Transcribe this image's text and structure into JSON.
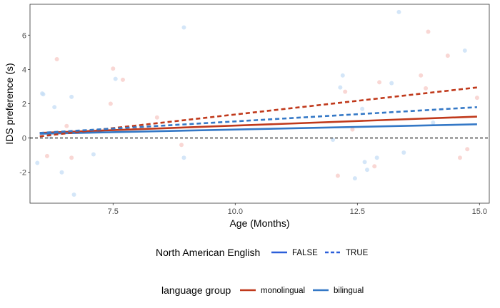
{
  "chart_data": {
    "type": "scatter",
    "xlabel": "Age (Months)",
    "ylabel": "IDS preference (s)",
    "xlim": [
      5.8,
      15.2
    ],
    "ylim": [
      -3.8,
      7.8
    ],
    "x_ticks": [
      7.5,
      10.0,
      12.5,
      15.0
    ],
    "x_tick_labels": [
      "7.5",
      "10.0",
      "12.5",
      "15.0"
    ],
    "y_ticks": [
      -2,
      0,
      2,
      4,
      6
    ],
    "y_tick_labels": [
      "-2",
      "0",
      "2",
      "4",
      "6"
    ],
    "reference_line": {
      "y": 0,
      "style": "dashed"
    },
    "grid": false,
    "colors": {
      "monolingual": "#c0391b",
      "bilingual": "#3478c6",
      "monolingual_point": "#f7c9c6",
      "bilingual_point": "#c6def5",
      "false_legend_line": "#2b5fd9",
      "true_legend_line": "#2b5fd9"
    },
    "points": [
      {
        "x": 5.95,
        "y": -1.45,
        "group": "bilingual"
      },
      {
        "x": 6.05,
        "y": 2.6,
        "group": "bilingual"
      },
      {
        "x": 6.07,
        "y": 2.55,
        "group": "bilingual"
      },
      {
        "x": 6.15,
        "y": -1.05,
        "group": "monolingual"
      },
      {
        "x": 6.2,
        "y": 0.05,
        "group": "bilingual"
      },
      {
        "x": 6.3,
        "y": 1.8,
        "group": "bilingual"
      },
      {
        "x": 6.35,
        "y": 4.6,
        "group": "monolingual"
      },
      {
        "x": 6.45,
        "y": -2.0,
        "group": "bilingual"
      },
      {
        "x": 6.55,
        "y": 0.7,
        "group": "monolingual"
      },
      {
        "x": 6.65,
        "y": 2.4,
        "group": "bilingual"
      },
      {
        "x": 6.65,
        "y": -1.15,
        "group": "monolingual"
      },
      {
        "x": 6.7,
        "y": -3.3,
        "group": "bilingual"
      },
      {
        "x": 7.1,
        "y": -0.95,
        "group": "bilingual"
      },
      {
        "x": 7.45,
        "y": 2.0,
        "group": "monolingual"
      },
      {
        "x": 7.5,
        "y": 4.05,
        "group": "monolingual"
      },
      {
        "x": 7.55,
        "y": 3.45,
        "group": "bilingual"
      },
      {
        "x": 7.7,
        "y": 3.4,
        "group": "monolingual"
      },
      {
        "x": 8.4,
        "y": 1.2,
        "group": "monolingual"
      },
      {
        "x": 8.9,
        "y": -0.4,
        "group": "monolingual"
      },
      {
        "x": 8.95,
        "y": 6.45,
        "group": "bilingual"
      },
      {
        "x": 8.95,
        "y": -1.15,
        "group": "bilingual"
      },
      {
        "x": 12.0,
        "y": -0.1,
        "group": "bilingual"
      },
      {
        "x": 12.1,
        "y": -2.2,
        "group": "monolingual"
      },
      {
        "x": 12.15,
        "y": 2.95,
        "group": "bilingual"
      },
      {
        "x": 12.2,
        "y": 3.65,
        "group": "bilingual"
      },
      {
        "x": 12.25,
        "y": 2.7,
        "group": "monolingual"
      },
      {
        "x": 12.4,
        "y": 0.5,
        "group": "monolingual"
      },
      {
        "x": 12.45,
        "y": -2.35,
        "group": "bilingual"
      },
      {
        "x": 12.6,
        "y": 1.7,
        "group": "bilingual"
      },
      {
        "x": 12.65,
        "y": -1.4,
        "group": "bilingual"
      },
      {
        "x": 12.7,
        "y": -1.85,
        "group": "bilingual"
      },
      {
        "x": 12.85,
        "y": -1.65,
        "group": "monolingual"
      },
      {
        "x": 12.9,
        "y": -1.15,
        "group": "bilingual"
      },
      {
        "x": 12.95,
        "y": 3.25,
        "group": "monolingual"
      },
      {
        "x": 13.2,
        "y": 3.2,
        "group": "bilingual"
      },
      {
        "x": 13.35,
        "y": 7.35,
        "group": "bilingual"
      },
      {
        "x": 13.45,
        "y": -0.85,
        "group": "bilingual"
      },
      {
        "x": 13.8,
        "y": 3.65,
        "group": "monolingual"
      },
      {
        "x": 13.9,
        "y": 2.9,
        "group": "monolingual"
      },
      {
        "x": 13.95,
        "y": 6.2,
        "group": "monolingual"
      },
      {
        "x": 14.05,
        "y": 0.9,
        "group": "bilingual"
      },
      {
        "x": 14.35,
        "y": 4.8,
        "group": "monolingual"
      },
      {
        "x": 14.6,
        "y": -1.15,
        "group": "monolingual"
      },
      {
        "x": 14.7,
        "y": 5.1,
        "group": "bilingual"
      },
      {
        "x": 14.75,
        "y": -0.65,
        "group": "monolingual"
      },
      {
        "x": 14.95,
        "y": 2.35,
        "group": "monolingual"
      }
    ],
    "series": [
      {
        "group": "monolingual",
        "north_american_english": "FALSE",
        "x": [
          6.0,
          14.95
        ],
        "y": [
          0.3,
          1.25
        ]
      },
      {
        "group": "bilingual",
        "north_american_english": "FALSE",
        "x": [
          6.0,
          14.95
        ],
        "y": [
          0.25,
          0.8
        ]
      },
      {
        "group": "monolingual",
        "north_american_english": "TRUE",
        "x": [
          6.0,
          14.95
        ],
        "y": [
          0.1,
          2.95
        ]
      },
      {
        "group": "bilingual",
        "north_american_english": "TRUE",
        "x": [
          6.0,
          14.95
        ],
        "y": [
          0.3,
          1.8
        ]
      }
    ],
    "legends": [
      {
        "title": "North American English",
        "entries": [
          {
            "label": "FALSE",
            "style": "solid",
            "color": "#2b5fd9"
          },
          {
            "label": "TRUE",
            "style": "dashed",
            "color": "#2b5fd9"
          }
        ]
      },
      {
        "title": "language group",
        "entries": [
          {
            "label": "monolingual",
            "style": "solid",
            "color": "#c0391b"
          },
          {
            "label": "bilingual",
            "style": "solid",
            "color": "#3478c6"
          }
        ]
      }
    ],
    "legend_position": "bottom"
  }
}
